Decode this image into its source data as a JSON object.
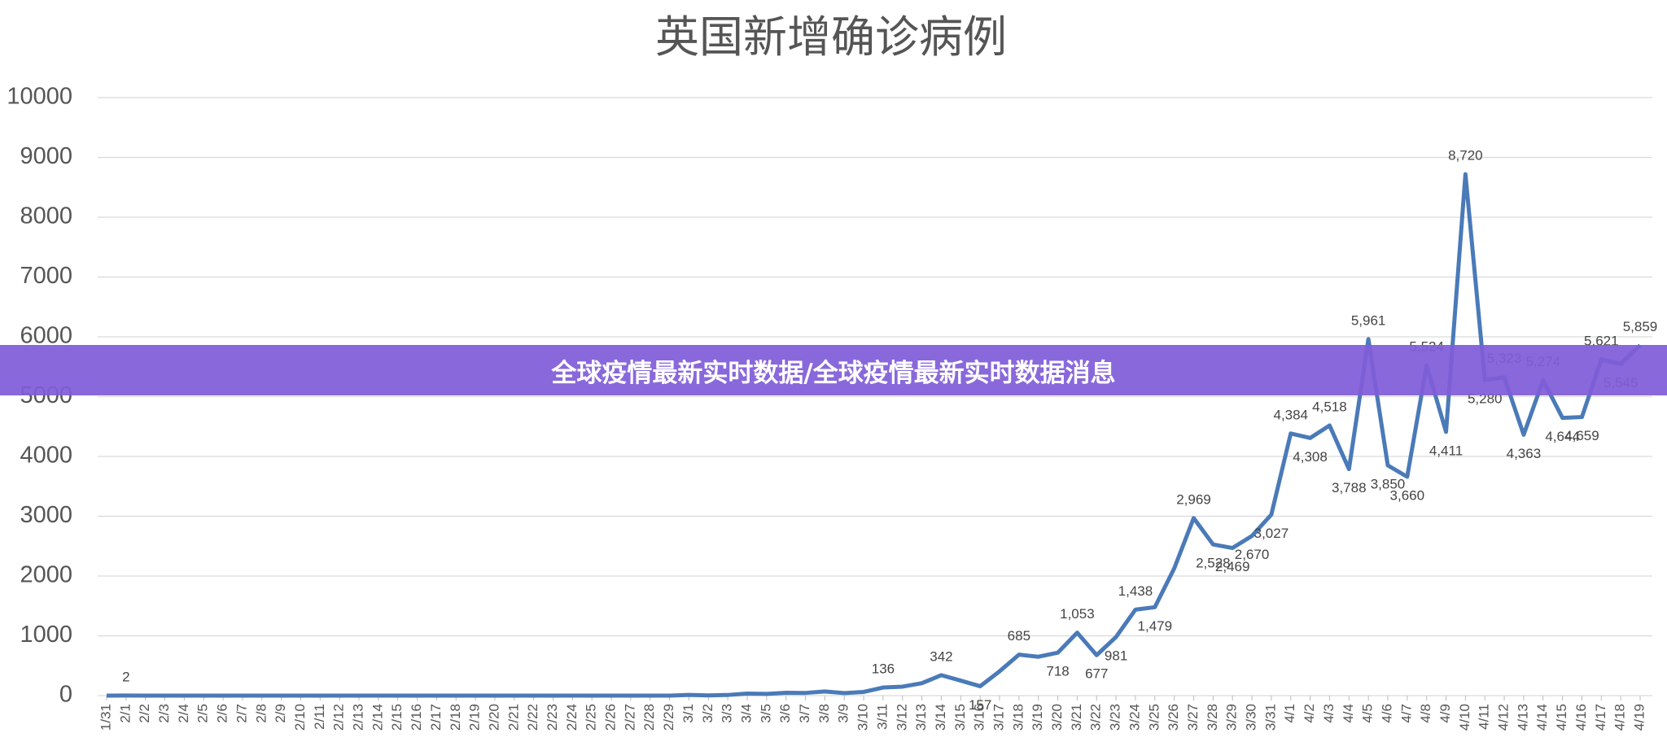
{
  "chart_data": {
    "type": "line",
    "title": "英国新增确诊病例",
    "categories": [
      "1/31",
      "2/1",
      "2/2",
      "2/3",
      "2/4",
      "2/5",
      "2/6",
      "2/7",
      "2/8",
      "2/9",
      "2/10",
      "2/11",
      "2/12",
      "2/13",
      "2/14",
      "2/15",
      "2/16",
      "2/17",
      "2/18",
      "2/19",
      "2/20",
      "2/21",
      "2/22",
      "2/23",
      "2/24",
      "2/25",
      "2/26",
      "2/27",
      "2/28",
      "2/29",
      "3/1",
      "3/2",
      "3/3",
      "3/4",
      "3/5",
      "3/6",
      "3/7",
      "3/8",
      "3/9",
      "3/10",
      "3/11",
      "3/12",
      "3/13",
      "3/14",
      "3/15",
      "3/16",
      "3/17",
      "3/18",
      "3/19",
      "3/20",
      "3/21",
      "3/22",
      "3/23",
      "3/24",
      "3/25",
      "3/26",
      "3/27",
      "3/28",
      "3/29",
      "3/30",
      "3/31",
      "4/1",
      "4/2",
      "4/3",
      "4/4",
      "4/5",
      "4/6",
      "4/7",
      "4/8",
      "4/9",
      "4/10",
      "4/11",
      "4/12",
      "4/13",
      "4/14",
      "4/15",
      "4/16",
      "4/17",
      "4/18",
      "4/19"
    ],
    "values": [
      0,
      2,
      0,
      0,
      0,
      0,
      0,
      0,
      0,
      0,
      0,
      0,
      0,
      0,
      0,
      0,
      0,
      0,
      0,
      0,
      0,
      0,
      0,
      0,
      0,
      0,
      0,
      0,
      0,
      0,
      12,
      4,
      11,
      34,
      29,
      48,
      45,
      69,
      43,
      62,
      136,
      150,
      208,
      342,
      251,
      157,
      407,
      685,
      650,
      718,
      1053,
      677,
      981,
      1438,
      1479,
      2129,
      2969,
      2528,
      2469,
      2670,
      3027,
      4384,
      4308,
      4518,
      3788,
      5961,
      3850,
      3660,
      5524,
      4411,
      8720,
      5280,
      5323,
      4363,
      5274,
      4644,
      4659,
      5621,
      5545,
      5859
    ],
    "value_labels": [
      null,
      "2",
      null,
      null,
      null,
      null,
      null,
      null,
      null,
      null,
      null,
      null,
      null,
      null,
      null,
      null,
      null,
      null,
      null,
      null,
      null,
      null,
      null,
      null,
      null,
      null,
      null,
      null,
      null,
      null,
      null,
      null,
      null,
      null,
      null,
      null,
      null,
      null,
      null,
      null,
      "136",
      null,
      null,
      "342",
      null,
      "157",
      null,
      "685",
      null,
      "718",
      "1,053",
      "677",
      "981",
      "1,438",
      "1,479",
      null,
      "2,969",
      "2,528",
      "2,469",
      "2,670",
      "3,027",
      "4,384",
      "4,308",
      "4,518",
      "3,788",
      "5,961",
      "3,850",
      "3,660",
      "5,524",
      "4,411",
      "8,720",
      "5,280",
      "5,323",
      "4,363",
      "5,274",
      "4,644",
      "4,659",
      "5,621",
      "5,545",
      "5,859"
    ],
    "color": "#4a7ab8",
    "ylim": [
      0,
      10000
    ],
    "yticks": [
      0,
      1000,
      2000,
      3000,
      4000,
      5000,
      6000,
      7000,
      8000,
      9000,
      10000
    ],
    "grid": true
  },
  "banner": "全球疫情最新实时数据/全球疫情最新实时数据消息"
}
